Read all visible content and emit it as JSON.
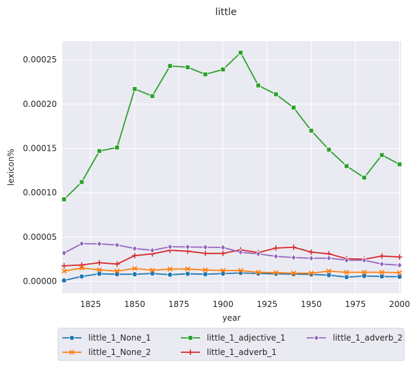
{
  "chart_data": {
    "type": "line",
    "title": "little",
    "xlabel": "year",
    "ylabel": "lexicon%",
    "xlim": [
      1809,
      2001
    ],
    "ylim": [
      -1.35e-05,
      0.000271
    ],
    "xticks": [
      1825,
      1850,
      1875,
      1900,
      1925,
      1950,
      1975,
      2000
    ],
    "yticks": [
      0.0,
      5e-05,
      0.0001,
      0.00015,
      0.0002,
      0.00025
    ],
    "ytick_labels": [
      "0.00000",
      "0.00005",
      "0.00010",
      "0.00015",
      "0.00020",
      "0.00025"
    ],
    "grid": true,
    "legend_position": "bottom",
    "x": [
      1810,
      1820,
      1830,
      1840,
      1850,
      1860,
      1870,
      1880,
      1890,
      1900,
      1910,
      1920,
      1930,
      1940,
      1950,
      1960,
      1970,
      1980,
      1990,
      2000
    ],
    "series": [
      {
        "name": "little_1_None_1",
        "color": "#1f77b4",
        "marker": "circle",
        "values": [
          1e-06,
          5.5e-06,
          8.5e-06,
          8e-06,
          8e-06,
          8.8e-06,
          7.5e-06,
          8.5e-06,
          8e-06,
          8.7e-06,
          9.5e-06,
          8.8e-06,
          8.5e-06,
          8.2e-06,
          7.8e-06,
          7e-06,
          4.8e-06,
          6e-06,
          5.5e-06,
          5.2e-06
        ]
      },
      {
        "name": "little_1_None_2",
        "color": "#ff7f0e",
        "marker": "x",
        "values": [
          1.15e-05,
          1.5e-05,
          1.3e-05,
          1.15e-05,
          1.45e-05,
          1.25e-05,
          1.38e-05,
          1.4e-05,
          1.28e-05,
          1.22e-05,
          1.22e-05,
          1.02e-05,
          9.8e-06,
          9.2e-06,
          9.2e-06,
          1.15e-05,
          1.02e-05,
          1.02e-05,
          1.02e-05,
          9.8e-06
        ]
      },
      {
        "name": "little_1_adjective_1",
        "color": "#2ca02c",
        "marker": "square",
        "values": [
          9.25e-05,
          0.000112,
          0.000147,
          0.000151,
          0.000217,
          0.000209,
          0.000243,
          0.0002415,
          0.0002335,
          0.000239,
          0.000258,
          0.000221,
          0.000211,
          0.000196,
          0.00017,
          0.0001485,
          0.00013,
          0.000117,
          0.0001425,
          0.000132
        ]
      },
      {
        "name": "little_1_adverb_1",
        "color": "#d62728",
        "marker": "plus",
        "values": [
          1.75e-05,
          1.85e-05,
          2.1e-05,
          1.95e-05,
          2.9e-05,
          3.1e-05,
          3.5e-05,
          3.4e-05,
          3.15e-05,
          3.15e-05,
          3.55e-05,
          3.25e-05,
          3.75e-05,
          3.85e-05,
          3.3e-05,
          3.1e-05,
          2.55e-05,
          2.5e-05,
          2.85e-05,
          2.75e-05
        ]
      },
      {
        "name": "little_1_adverb_2",
        "color": "#9467bd",
        "marker": "diamond",
        "values": [
          3.2e-05,
          4.25e-05,
          4.23e-05,
          4.1e-05,
          3.7e-05,
          3.5e-05,
          3.9e-05,
          3.88e-05,
          3.85e-05,
          3.82e-05,
          3.28e-05,
          3.1e-05,
          2.82e-05,
          2.68e-05,
          2.6e-05,
          2.62e-05,
          2.38e-05,
          2.38e-05,
          1.95e-05,
          1.82e-05
        ]
      }
    ]
  }
}
